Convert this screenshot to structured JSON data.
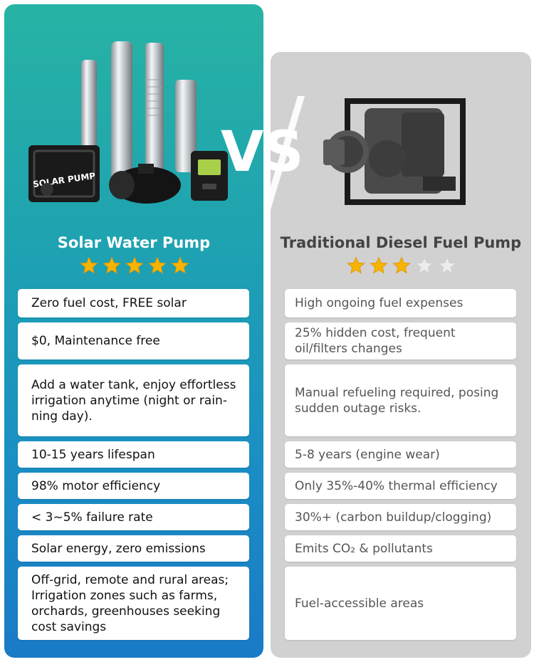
{
  "solar": {
    "title": "Solar Water Pump",
    "rating": 5,
    "pump_label": "SOLAR PUMP",
    "points": [
      "Zero fuel cost, FREE solar",
      "$0, Maintenance free",
      "Add a water tank, enjoy effortless\nirrigation anytime (night or rain-\nning day).",
      "10-15 years lifespan",
      "98% motor efficiency",
      " < 3~5% failure rate",
      "Solar energy, zero emissions",
      "Off-grid, remote and rural areas;\nIrrigation zones such as farms,\norchards, greenhouses seeking\ncost savings"
    ]
  },
  "diesel": {
    "title": "Traditional Diesel Fuel Pump",
    "rating": 3,
    "points": [
      "High ongoing fuel expenses",
      "25% hidden cost, frequent\noil/filters changes",
      "Manual refueling required, posing\nsudden outage risks.",
      "5-8 years (engine wear)",
      "Only 35%-40% thermal efficiency",
      "30%+ (carbon buildup/clogging)",
      "Emits CO₂ & pollutants",
      "Fuel-accessible areas"
    ]
  },
  "vs_text": "VS",
  "colors": {
    "solar_top": "#27b3a4",
    "solar_bottom": "#1a7ac6",
    "diesel_panel": "#d1d1d1",
    "star_on": "#f5b400",
    "star_off": "#ececec"
  }
}
